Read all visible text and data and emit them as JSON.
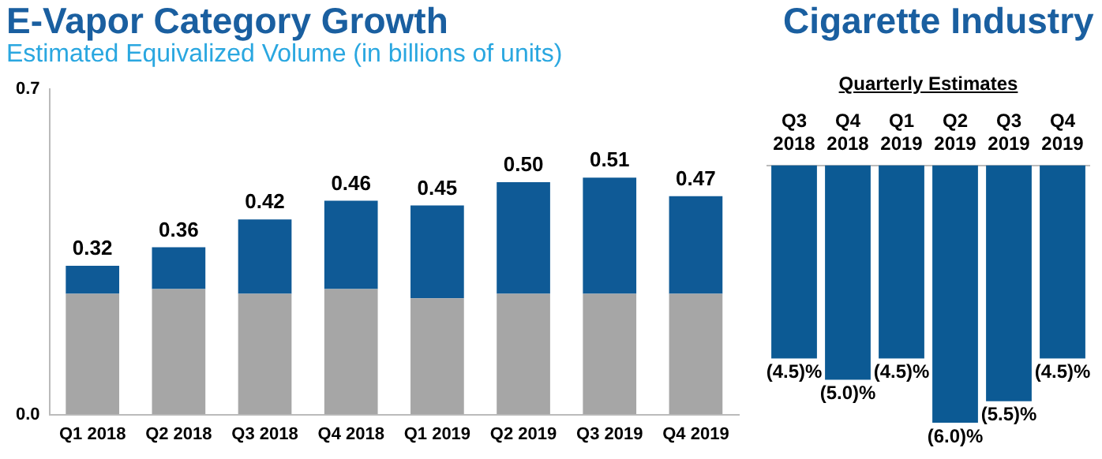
{
  "chart_data": [
    {
      "type": "bar",
      "title": "E-Vapor Category Growth",
      "subtitle": "Estimated Equivalized Volume (in billions of units)",
      "categories": [
        "Q1 2018",
        "Q2 2018",
        "Q3 2018",
        "Q4 2018",
        "Q1 2019",
        "Q2 2019",
        "Q3 2019",
        "Q4 2019"
      ],
      "series": [
        {
          "color": "#a6a6a6",
          "values": [
            0.26,
            0.27,
            0.26,
            0.27,
            0.25,
            0.26,
            0.26,
            0.26
          ]
        },
        {
          "color": "#0f5a96",
          "values": [
            0.06,
            0.09,
            0.16,
            0.19,
            0.2,
            0.24,
            0.25,
            0.21
          ]
        }
      ],
      "stacked": true,
      "totals": [
        "0.32",
        "0.36",
        "0.42",
        "0.46",
        "0.45",
        "0.50",
        "0.51",
        "0.47"
      ],
      "ylim": [
        0,
        0.7
      ],
      "yticks": [
        {
          "value": 0,
          "label": "0.0"
        },
        {
          "value": 0.7,
          "label": "0.7"
        }
      ],
      "grid": false,
      "legend": false
    },
    {
      "type": "bar",
      "title": "Cigarette Industry",
      "subtitle": "Quarterly Estimates",
      "categories": [
        "Q3 2018",
        "Q4 2018",
        "Q1 2019",
        "Q2 2019",
        "Q3 2019",
        "Q4 2019"
      ],
      "values": [
        -4.5,
        -5.0,
        -4.5,
        -6.0,
        -5.5,
        -4.5
      ],
      "color": "#0c5a94",
      "value_labels": [
        "(4.5)%",
        "(5.0)%",
        "(4.5)%",
        "(6.0)%",
        "(5.5)%",
        "(4.5)%"
      ],
      "tick_labels": "x",
      "grid": false,
      "legend": false
    }
  ]
}
